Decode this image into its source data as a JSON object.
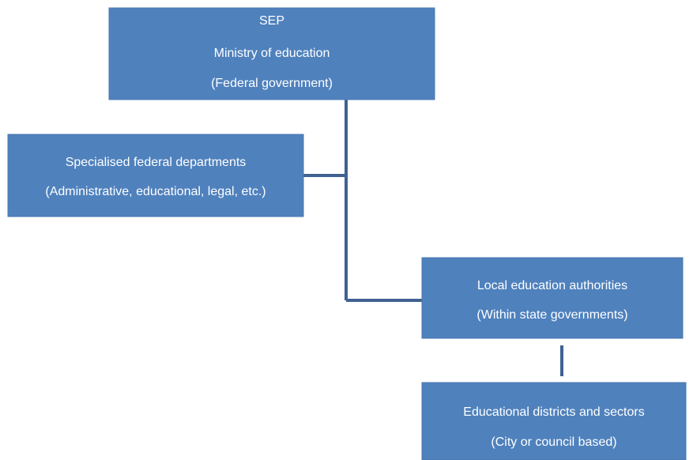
{
  "nodes": [
    {
      "lines": [
        "SEP",
        "Ministry of education",
        "(Federal government)"
      ]
    },
    {
      "lines": [
        "Specialised federal departments",
        "(Administrative, educational, legal, etc.)"
      ]
    },
    {
      "lines": [
        "Local education authorities",
        "(Within state governments)"
      ]
    },
    {
      "lines": [
        "Educational districts and sectors",
        "(City or council based)"
      ]
    }
  ]
}
